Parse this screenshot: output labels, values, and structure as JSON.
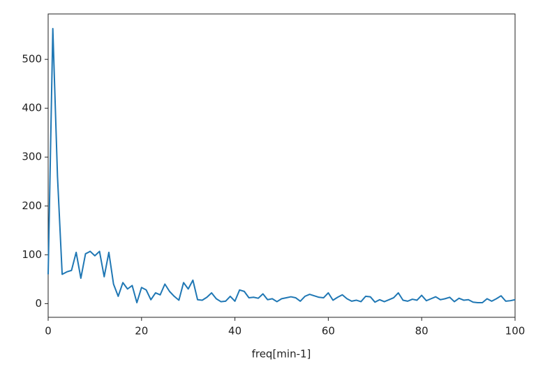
{
  "chart_data": {
    "type": "line",
    "xlabel": "freq[min-1]",
    "x": [
      0,
      1,
      2,
      3,
      4,
      5,
      6,
      7,
      8,
      9,
      10,
      11,
      12,
      13,
      14,
      15,
      16,
      17,
      18,
      19,
      20,
      21,
      22,
      23,
      24,
      25,
      26,
      27,
      28,
      29,
      30,
      31,
      32,
      33,
      34,
      35,
      36,
      37,
      38,
      39,
      40,
      41,
      42,
      43,
      44,
      45,
      46,
      47,
      48,
      49,
      50,
      51,
      52,
      53,
      54,
      55,
      56,
      57,
      58,
      59,
      60,
      61,
      62,
      63,
      64,
      65,
      66,
      67,
      68,
      69,
      70,
      71,
      72,
      73,
      74,
      75,
      76,
      77,
      78,
      79,
      80,
      81,
      82,
      83,
      84,
      85,
      86,
      87,
      88,
      89,
      90,
      91,
      92,
      93,
      94,
      95,
      96,
      97,
      98,
      99,
      100
    ],
    "series": [
      {
        "color": "#1f77b4",
        "values": [
          60,
          563,
          260,
          60,
          65,
          68,
          105,
          52,
          102,
          107,
          98,
          107,
          55,
          105,
          40,
          15,
          43,
          30,
          37,
          2,
          33,
          28,
          8,
          22,
          18,
          40,
          25,
          15,
          7,
          43,
          30,
          48,
          8,
          7,
          13,
          22,
          10,
          4,
          5,
          15,
          5,
          28,
          25,
          12,
          13,
          11,
          20,
          8,
          10,
          4,
          10,
          12,
          14,
          12,
          5,
          15,
          19,
          16,
          13,
          12,
          22,
          7,
          13,
          18,
          10,
          5,
          7,
          4,
          15,
          14,
          3,
          8,
          4,
          8,
          12,
          22,
          7,
          5,
          9,
          7,
          17,
          6,
          10,
          14,
          8,
          10,
          13,
          4,
          11,
          7,
          8,
          3,
          2,
          2,
          10,
          5,
          10,
          16,
          5,
          6,
          8
        ]
      }
    ],
    "xlim": [
      0,
      100
    ],
    "xticks": [
      0,
      20,
      40,
      60,
      80,
      100
    ],
    "ylim": [
      -28,
      593
    ],
    "yticks": [
      0,
      100,
      200,
      300,
      400,
      500
    ]
  }
}
